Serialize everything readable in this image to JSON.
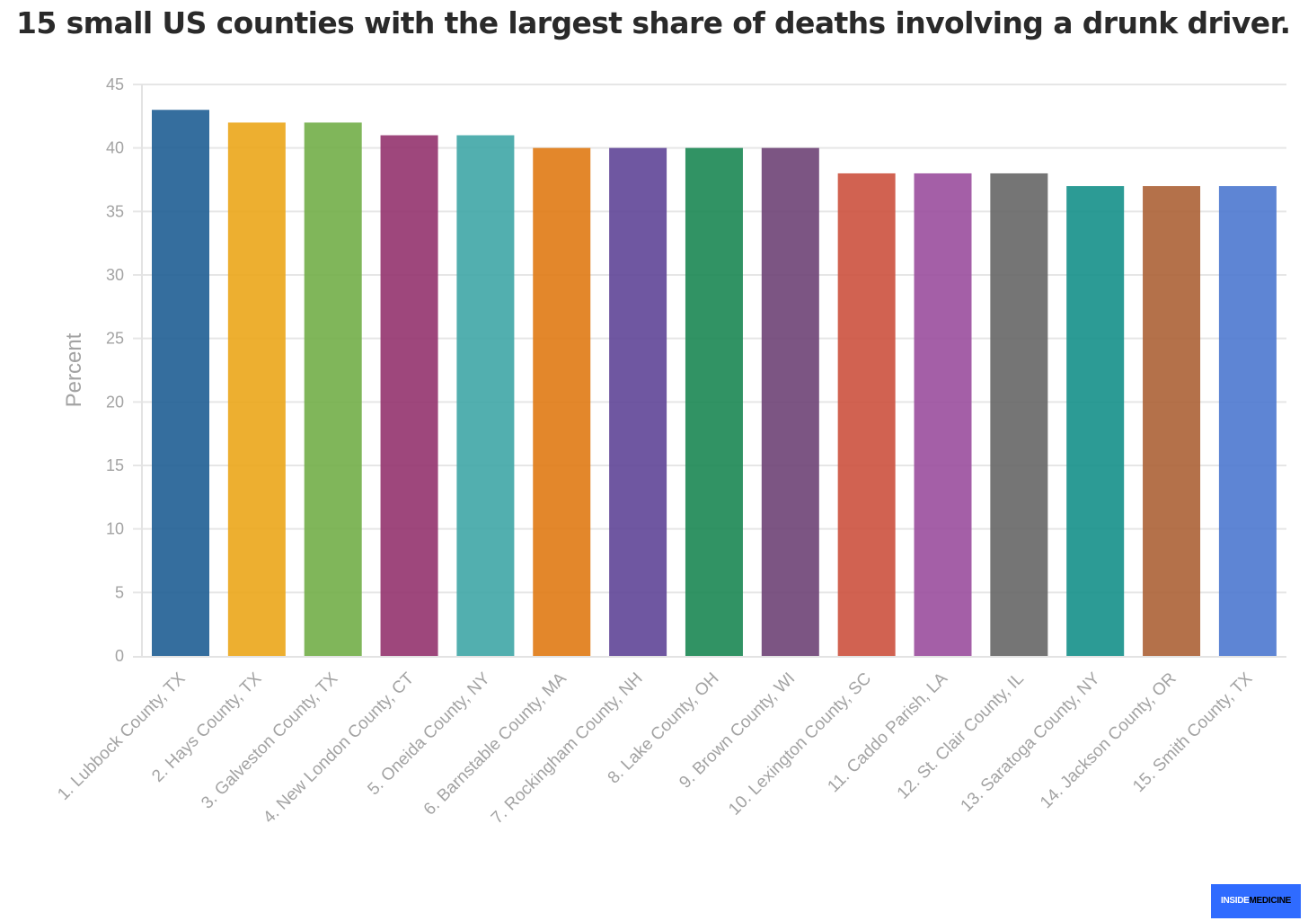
{
  "chart_data": {
    "type": "bar",
    "title": "15 small US counties with the largest share of deaths involving a drunk driver.",
    "xlabel": "",
    "ylabel": "Percent",
    "ylim": [
      0,
      45
    ],
    "yticks": [
      0,
      5,
      10,
      15,
      20,
      25,
      30,
      35,
      40,
      45
    ],
    "grid": true,
    "categories": [
      "1. Lubbock County, TX",
      "2. Hays County, TX",
      "3. Galveston County, TX",
      "4. New London County, CT",
      "5. Oneida County, NY",
      "6. Barnstable County, MA",
      "7. Rockingham County, NH",
      "8. Lake County, OH",
      "9. Brown County, WI",
      "10. Lexington County, SC",
      "11. Caddo Parish, LA",
      "12. St. Clair County, IL",
      "13. Saratoga County, NY",
      "14. Jackson County, OR",
      "15. Smith County, TX"
    ],
    "values": [
      43,
      42,
      42,
      41,
      41,
      40,
      40,
      40,
      40,
      38,
      38,
      38,
      37,
      37,
      37
    ],
    "colors": [
      "#1f5e94",
      "#eba61a",
      "#72ae48",
      "#93336e",
      "#3fa6a6",
      "#e07a14",
      "#5f4597",
      "#1b8753",
      "#6e4275",
      "#cc513e",
      "#9a4e9d",
      "#666666",
      "#15908a",
      "#ac6236",
      "#4d78cf"
    ]
  },
  "branding": {
    "logo_word_1": "INSIDE",
    "logo_word_2": "MEDICINE"
  }
}
